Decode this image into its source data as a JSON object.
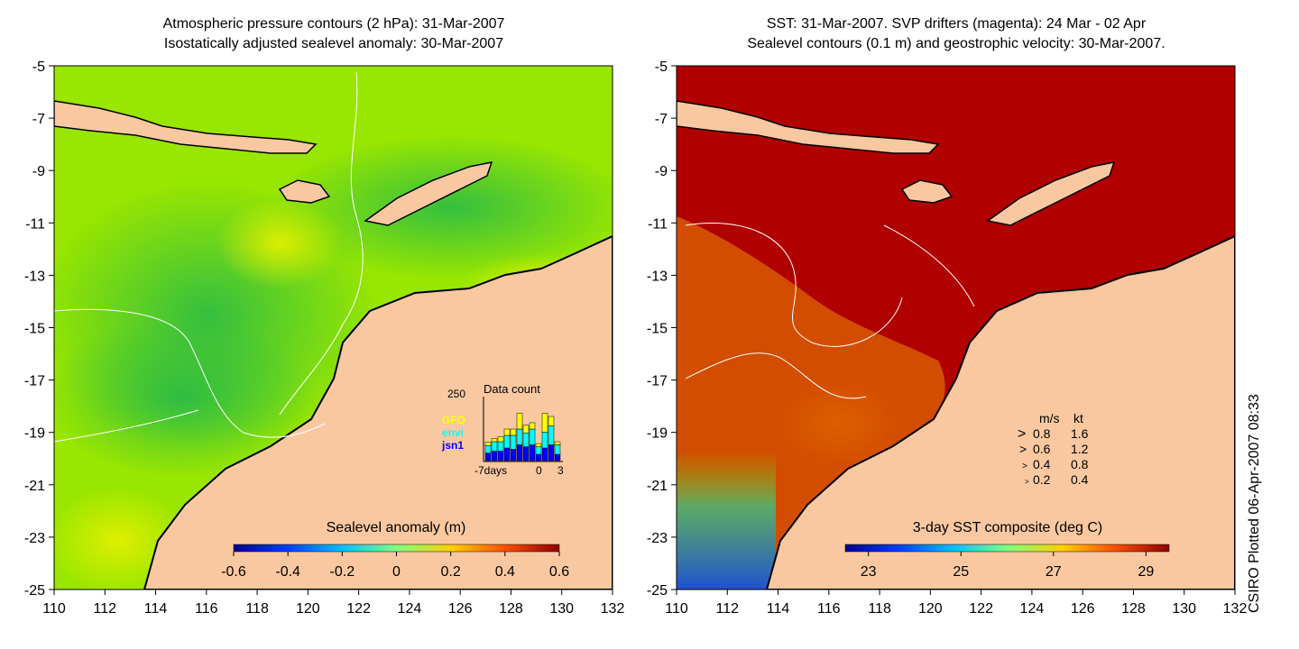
{
  "left_map": {
    "title_line1": "Atmospheric pressure contours (2 hPa): 31-Mar-2007",
    "title_line2": "Isostatically adjusted sealevel anomaly: 30-Mar-2007",
    "colorbar_label": "Sealevel anomaly (m)",
    "colorbar_ticks": [
      "-0.6",
      "-0.4",
      "-0.2",
      "0",
      "0.2",
      "0.4",
      "0.6"
    ],
    "colorbar_range": [
      -0.6,
      0.6
    ],
    "colors": {
      "ocean_base": "#99e600",
      "ocean_low": "#22b84a",
      "land": "#f9c8a0"
    },
    "inset": {
      "title": "Data count",
      "ymax_label": "250",
      "legend": [
        {
          "name": "GFO",
          "color": "#ffff00"
        },
        {
          "name": "envi",
          "color": "#00ffff"
        },
        {
          "name": "jsn1",
          "color": "#0000ff"
        }
      ],
      "x_labels": [
        "-7days",
        "0",
        "3"
      ],
      "bars": [
        {
          "gfo": 0.05,
          "envi": 0.12,
          "jsn1": 0.12
        },
        {
          "gfo": 0.05,
          "envi": 0.15,
          "jsn1": 0.15
        },
        {
          "gfo": 0.08,
          "envi": 0.15,
          "jsn1": 0.15
        },
        {
          "gfo": 0.1,
          "envi": 0.2,
          "jsn1": 0.2
        },
        {
          "gfo": 0.1,
          "envi": 0.22,
          "jsn1": 0.18
        },
        {
          "gfo": 0.25,
          "envi": 0.25,
          "jsn1": 0.25
        },
        {
          "gfo": 0.12,
          "envi": 0.22,
          "jsn1": 0.22
        },
        {
          "gfo": 0.1,
          "envi": 0.25,
          "jsn1": 0.25
        },
        {
          "gfo": 0.05,
          "envi": 0.12,
          "jsn1": 0.1
        },
        {
          "gfo": 0.3,
          "envi": 0.25,
          "jsn1": 0.2
        },
        {
          "gfo": 0.15,
          "envi": 0.3,
          "jsn1": 0.25
        },
        {
          "gfo": 0.05,
          "envi": 0.15,
          "jsn1": 0.1
        }
      ]
    }
  },
  "right_map": {
    "title_line1": "SST: 31-Mar-2007. SVP drifters (magenta): 24 Mar - 02 Apr",
    "title_line2": "Sealevel contours (0.1 m) and geostrophic velocity: 30-Mar-2007.",
    "colorbar_label": "3-day SST composite (deg C)",
    "colorbar_ticks": [
      "23",
      "25",
      "27",
      "29"
    ],
    "colorbar_range": [
      22.5,
      29.5
    ],
    "colors": {
      "ocean_warm": "#b00000",
      "ocean_mid": "#d85a00",
      "land": "#f9c8a0"
    },
    "velocity_legend": {
      "header_ms": "m/s",
      "header_kt": "kt",
      "rows": [
        {
          "ms": "0.8",
          "kt": "1.6"
        },
        {
          "ms": "0.6",
          "kt": "1.2"
        },
        {
          "ms": "0.4",
          "kt": "0.8"
        },
        {
          "ms": "0.2",
          "kt": "0.4"
        }
      ]
    }
  },
  "axes": {
    "x_ticks": [
      "110",
      "112",
      "114",
      "116",
      "118",
      "120",
      "122",
      "124",
      "126",
      "128",
      "130",
      "132"
    ],
    "y_ticks": [
      "-5",
      "-7",
      "-9",
      "-11",
      "-13",
      "-15",
      "-17",
      "-19",
      "-21",
      "-23",
      "-25"
    ],
    "lon_range": [
      110,
      132
    ],
    "lat_range": [
      -25,
      -5
    ]
  },
  "credit": "CSIRO Plotted 06-Apr-2007 08:33"
}
